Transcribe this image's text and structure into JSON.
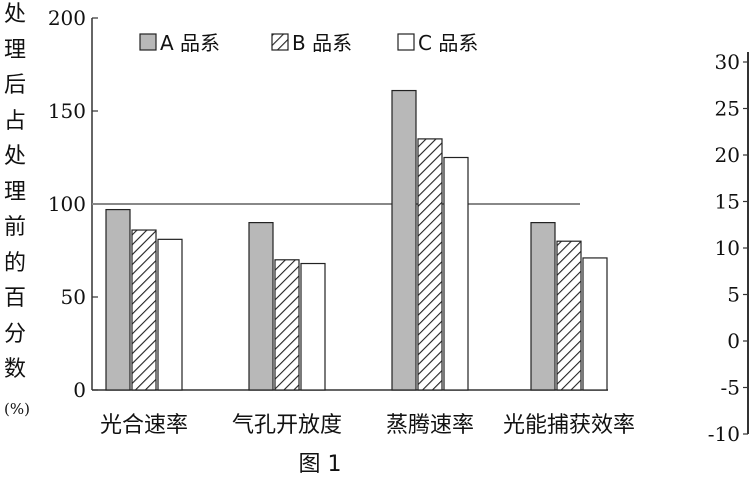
{
  "chart_data": [
    {
      "type": "bar",
      "title": "",
      "ylabel_chars": [
        "处",
        "理",
        "后",
        "占",
        "处",
        "理",
        "前",
        "的",
        "百",
        "分",
        "数"
      ],
      "ylabel_unit": "(%)",
      "xlabel": "",
      "caption": "图 1",
      "ylim": [
        0,
        200
      ],
      "yticks": [
        "0",
        "50",
        "100",
        "150",
        "200"
      ],
      "ytick_values": [
        0,
        50,
        100,
        150,
        200
      ],
      "reference_line": 100,
      "categories": [
        "光合速率",
        "气孔开放度",
        "蒸腾速率",
        "光能捕获效率"
      ],
      "series": [
        {
          "name": "A 品系",
          "values": [
            97,
            90,
            161,
            90
          ],
          "fill": "gray"
        },
        {
          "name": "B 品系",
          "values": [
            86,
            70,
            135,
            80
          ],
          "fill": "hatch"
        },
        {
          "name": "C 品系",
          "values": [
            81,
            68,
            125,
            71
          ],
          "fill": "white"
        }
      ],
      "legend_position": "top"
    },
    {
      "type": "bar",
      "partial": true,
      "ylim": [
        -10,
        30
      ],
      "yticks": [
        "30",
        "25",
        "20",
        "15",
        "10",
        "5",
        "0",
        "-5",
        "-10"
      ]
    }
  ],
  "colors": {
    "gray_fill": "#b8b8b8",
    "axis": "#333333",
    "reference_line": "#888888"
  }
}
